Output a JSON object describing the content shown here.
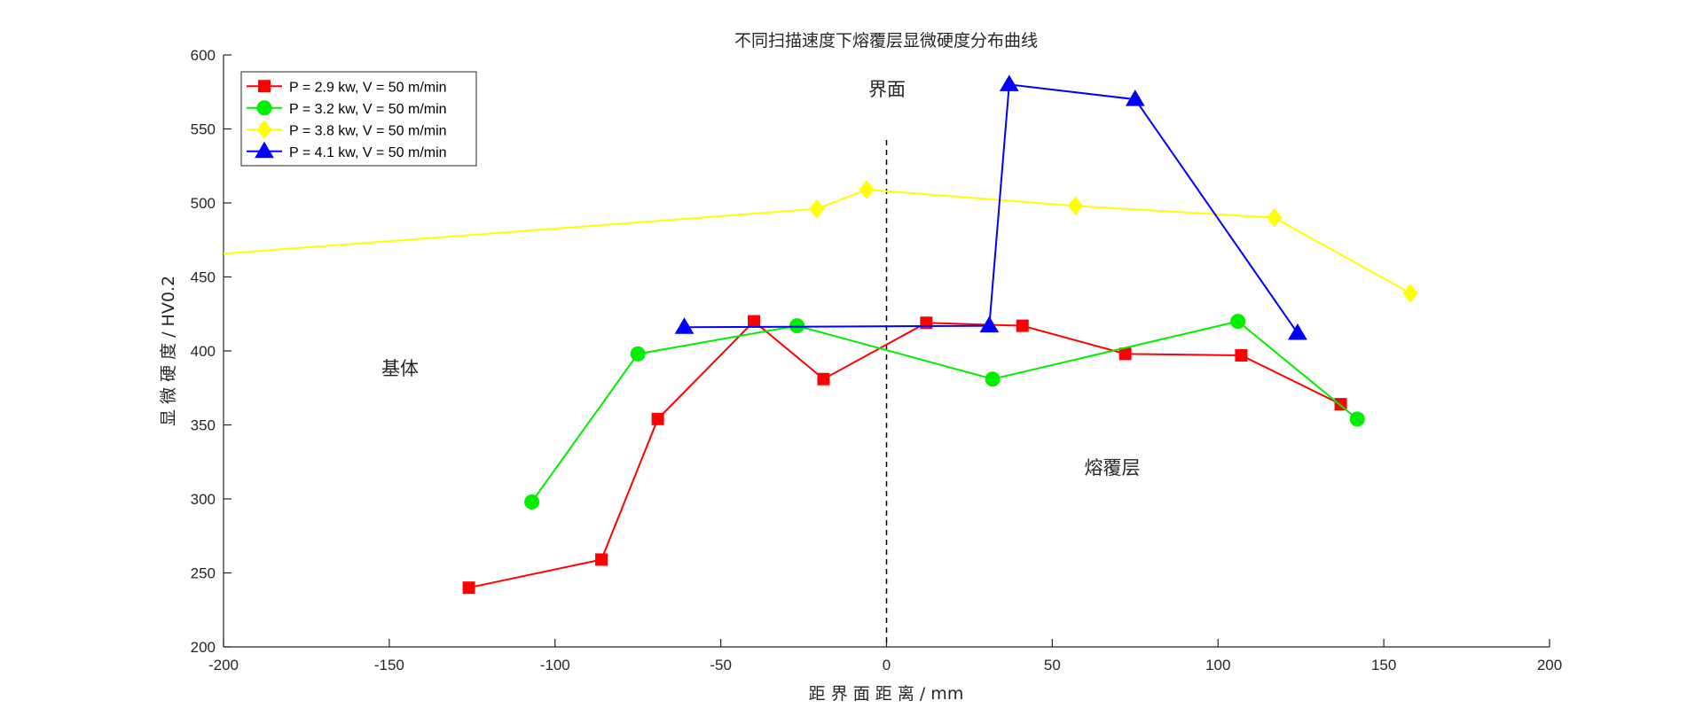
{
  "chart_data": {
    "type": "line",
    "title": "不同扫描速度下熔覆层显微硬度分布曲线",
    "xlabel": "距 界 面 距 离 / mm",
    "ylabel": "显 微 硬 度 / HV0.2",
    "xlim": [
      -200,
      200
    ],
    "ylim": [
      200,
      600
    ],
    "xticks": [
      -200,
      -150,
      -100,
      -50,
      0,
      50,
      100,
      150,
      200
    ],
    "yticks": [
      200,
      250,
      300,
      350,
      400,
      450,
      500,
      550,
      600
    ],
    "grid": false,
    "legend_position": "top-left",
    "interface_x": 0,
    "annotations": {
      "interface": "界面",
      "substrate": "基体",
      "cladding": "熔覆层"
    },
    "series": [
      {
        "name": "P = 2.9 kw, V = 50 m/min",
        "color": "#ff0000",
        "marker": "square",
        "x": [
          -126,
          -86,
          -69,
          -40,
          -19,
          12,
          41,
          72,
          107,
          137
        ],
        "y": [
          240,
          259,
          354,
          420,
          381,
          419,
          417,
          398,
          397,
          364
        ]
      },
      {
        "name": "P = 3.2 kw, V = 50 m/min",
        "color": "#00ee00",
        "marker": "circle",
        "x": [
          -107,
          -75,
          -27,
          32,
          106,
          142
        ],
        "y": [
          298,
          398,
          417,
          381,
          420,
          354
        ]
      },
      {
        "name": "P = 3.8 kw, V = 50 m/min",
        "color": "#ffff00",
        "marker": "diamond",
        "x": [
          -222,
          -21,
          -6,
          57,
          117,
          158
        ],
        "y": [
          462,
          496,
          509,
          498,
          490,
          439
        ]
      },
      {
        "name": "P = 4.1 kw, V = 50 m/min",
        "color": "#0000ff",
        "marker": "triangle",
        "x": [
          -61,
          31,
          37,
          75,
          124
        ],
        "y": [
          416,
          417,
          580,
          570,
          412
        ]
      }
    ]
  }
}
